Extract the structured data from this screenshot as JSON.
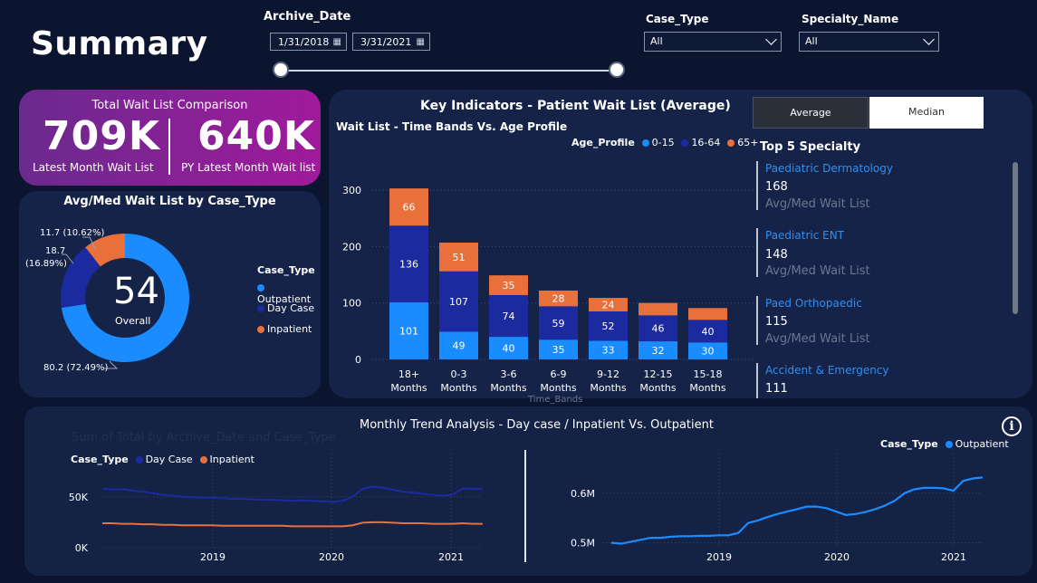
{
  "header": {
    "title": "Summary",
    "archive_date_label": "Archive_Date",
    "date_start": "1/31/2018",
    "date_end": "3/31/2021",
    "case_type_label": "Case_Type",
    "case_type_value": "All",
    "specialty_label": "Specialty_Name",
    "specialty_value": "All",
    "calendar_icon": "calendar-icon"
  },
  "kpi": {
    "title": "Total Wait List Comparison",
    "left_value": "709K",
    "left_label": "Latest Month Wait List",
    "right_value": "640K",
    "right_label": "PY Latest Month Wait list"
  },
  "donut": {
    "title": "Avg/Med Wait List by Case_Type",
    "center_value": "54",
    "center_label": "Overall",
    "legend_title": "Case_Type",
    "legend": [
      {
        "name": "Outpatient",
        "color": "#1a8cff"
      },
      {
        "name": "Day Case",
        "color": "#1c2aa0"
      },
      {
        "name": "Inpatient",
        "color": "#e8703a"
      }
    ],
    "labels": {
      "inpatient": "11.7 (10.62%)",
      "daycase_line1": "18.7",
      "daycase_line2": "(16.89%)",
      "outpatient": "80.2 (72.49%)"
    }
  },
  "key_indicators": {
    "title": "Key Indicators - Patient Wait List (Average)",
    "toggle_average": "Average",
    "toggle_median": "Median",
    "bar_title": "Wait List - Time Bands Vs. Age Profile",
    "legend_title": "Age_Profile",
    "x_axis_label": "Time_Bands",
    "top5_title": "Top 5 Specialty",
    "top5": [
      {
        "name": "Paediatric Dermatology",
        "value": "168",
        "sub": "Avg/Med Wait List"
      },
      {
        "name": "Paediatric ENT",
        "value": "148",
        "sub": "Avg/Med Wait List"
      },
      {
        "name": "Paed Orthopaedic",
        "value": "115",
        "sub": "Avg/Med Wait List"
      },
      {
        "name": "Accident & Emergency",
        "value": "111",
        "sub": ""
      }
    ]
  },
  "trend": {
    "title": "Monthly Trend Analysis - Day case / Inpatient Vs. Outpatient",
    "faded_subtitle": "Sum of Total by Archive_Date and Case_Type",
    "left_legend_title": "Case_Type",
    "left_legend": [
      {
        "name": "Day Case",
        "color": "#1c2aa0"
      },
      {
        "name": "Inpatient",
        "color": "#e8703a"
      }
    ],
    "right_legend_title": "Case_Type",
    "right_legend": [
      {
        "name": "Outpatient",
        "color": "#1a8cff"
      }
    ],
    "left_y_ticks": [
      "50K",
      "0K"
    ],
    "right_y_ticks": [
      "0.6M",
      "0.5M"
    ],
    "x_ticks": [
      "2019",
      "2020",
      "2021"
    ],
    "info_icon": "info-icon"
  },
  "chart_data": [
    {
      "type": "pie",
      "title": "Avg/Med Wait List by Case_Type",
      "categories": [
        "Outpatient",
        "Day Case",
        "Inpatient"
      ],
      "values": [
        80.2,
        18.7,
        11.7
      ],
      "percent": [
        72.49,
        16.89,
        10.62
      ],
      "center": "54",
      "legend": "right"
    },
    {
      "type": "bar",
      "stacked": true,
      "title": "Wait List - Time Bands Vs. Age Profile",
      "categories": [
        "18+ Months",
        "0-3 Months",
        "3-6 Months",
        "6-9 Months",
        "9-12 Months",
        "12-15 Months",
        "15-18 Months"
      ],
      "series": [
        {
          "name": "0-15",
          "color": "#1a8cff",
          "values": [
            101,
            49,
            40,
            35,
            33,
            32,
            30
          ]
        },
        {
          "name": "16-64",
          "color": "#1c2aa0",
          "values": [
            136,
            107,
            74,
            59,
            52,
            46,
            40
          ]
        },
        {
          "name": "65+",
          "color": "#e8703a",
          "values": [
            66,
            51,
            35,
            28,
            24,
            22,
            21
          ]
        }
      ],
      "y_ticks": [
        0,
        100,
        200,
        300
      ],
      "ylim": [
        0,
        310
      ],
      "legend": "top"
    },
    {
      "type": "line",
      "title": "Day Case / Inpatient",
      "x_range": [
        "2018-01",
        "2021-03"
      ],
      "y_ticks": [
        "0K",
        "50K"
      ],
      "ylim": [
        0,
        80000
      ],
      "series": [
        {
          "name": "Day Case",
          "color": "#1c2aa0",
          "values": [
            58000,
            57000,
            57500,
            56000,
            55000,
            53500,
            52000,
            51000,
            50000,
            49500,
            49000,
            49000,
            48500,
            48000,
            48000,
            47500,
            47000,
            47000,
            46500,
            46000,
            46500,
            46000,
            45500,
            45000,
            46000,
            50000,
            58000,
            60000,
            59000,
            57000,
            55000,
            54000,
            53000,
            52000,
            51000,
            52000,
            58000,
            58000,
            57500
          ]
        },
        {
          "name": "Inpatient",
          "color": "#e8703a",
          "values": [
            24000,
            24000,
            23500,
            23500,
            23000,
            23000,
            22500,
            22500,
            22000,
            22000,
            22000,
            22000,
            21500,
            21500,
            21500,
            21500,
            21500,
            21500,
            21500,
            21000,
            21000,
            21000,
            21000,
            21000,
            21000,
            22000,
            24500,
            25000,
            25000,
            24500,
            24000,
            24000,
            24000,
            23500,
            23500,
            23500,
            24000,
            23500,
            23500
          ]
        }
      ],
      "grid": true,
      "legend": "top-left"
    },
    {
      "type": "line",
      "title": "Outpatient",
      "x_range": [
        "2018-01",
        "2021-03"
      ],
      "y_ticks": [
        "0.5M",
        "0.6M"
      ],
      "ylim": [
        0.49,
        0.64
      ],
      "series": [
        {
          "name": "Outpatient",
          "color": "#1a8cff",
          "values": [
            0.5,
            0.498,
            0.502,
            0.506,
            0.51,
            0.51,
            0.512,
            0.513,
            0.513,
            0.514,
            0.514,
            0.515,
            0.515,
            0.52,
            0.54,
            0.545,
            0.552,
            0.558,
            0.563,
            0.568,
            0.573,
            0.573,
            0.57,
            0.563,
            0.556,
            0.558,
            0.562,
            0.568,
            0.575,
            0.585,
            0.6,
            0.608,
            0.611,
            0.611,
            0.61,
            0.605,
            0.625,
            0.63,
            0.632
          ]
        }
      ],
      "grid": true,
      "legend": "top-right"
    }
  ]
}
